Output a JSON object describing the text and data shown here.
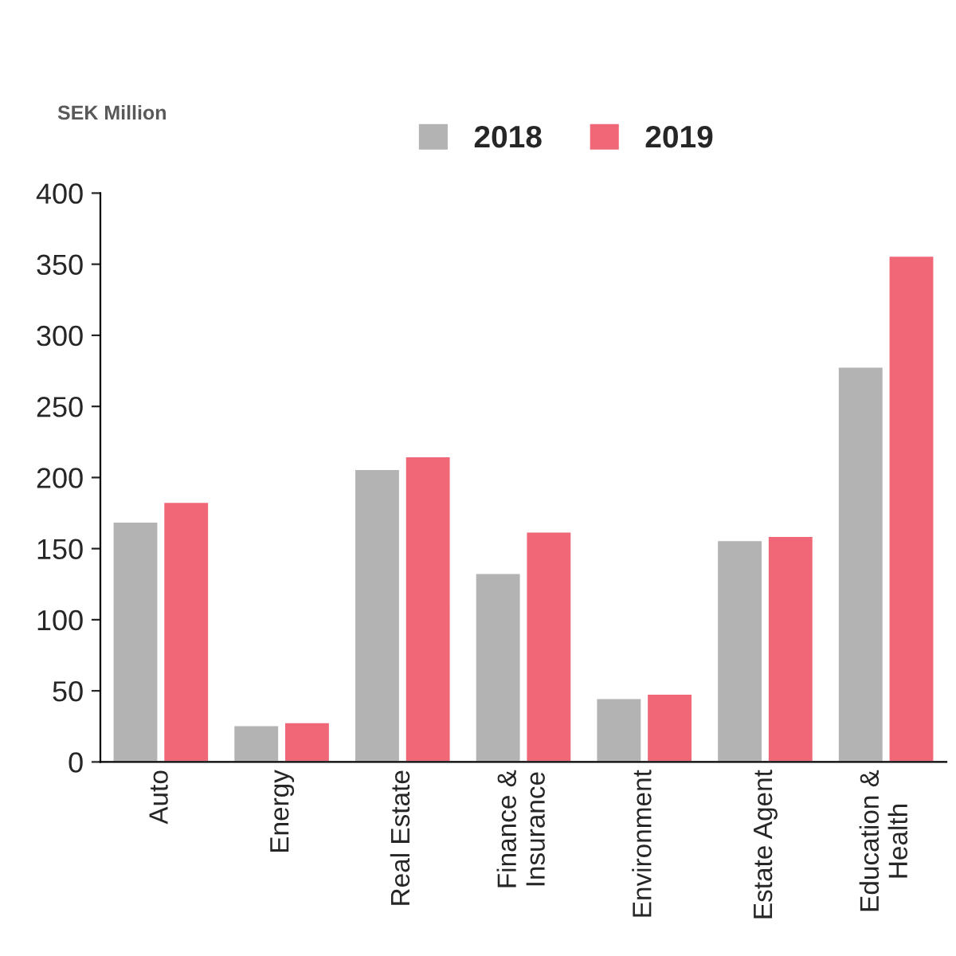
{
  "chart_data": {
    "type": "bar",
    "ylabel": "SEK Million",
    "categories": [
      "Auto",
      "Energy",
      "Real Estate",
      "Finance & Insurance",
      "Environment",
      "Estate Agent",
      "Education & Health"
    ],
    "series": [
      {
        "name": "2018",
        "color": "#b3b3b3",
        "values": [
          169,
          26,
          206,
          133,
          45,
          156,
          278
        ]
      },
      {
        "name": "2019",
        "color": "#f06878",
        "values": [
          183,
          28,
          215,
          162,
          48,
          159,
          356
        ]
      }
    ],
    "ylim": [
      0,
      400
    ],
    "yticks": [
      0,
      50,
      100,
      150,
      200,
      250,
      300,
      350,
      400
    ],
    "grid": false,
    "legend": "top"
  }
}
